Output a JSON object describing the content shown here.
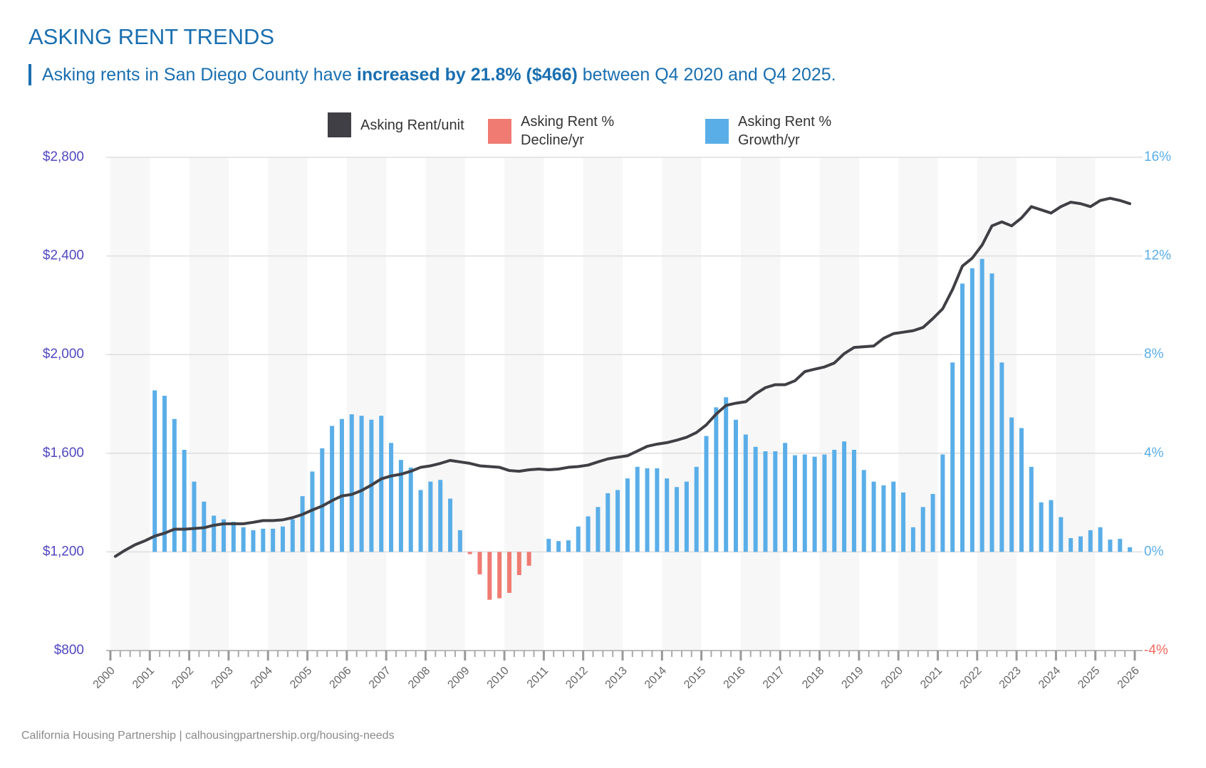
{
  "chart_data": {
    "type": "combo",
    "title": "ASKING RENT TRENDS",
    "subtitle": {
      "before": "Asking rents in San Diego County have ",
      "emphasis": "increased by 21.8% ($466)",
      "after": " between Q4 2020 and Q4 2025."
    },
    "source": "California Housing Partnership | calhousingpartnership.org/housing-needs",
    "x": [
      2000.125,
      2000.375,
      2000.625,
      2000.875,
      2001.125,
      2001.375,
      2001.625,
      2001.875,
      2002.125,
      2002.375,
      2002.625,
      2002.875,
      2003.125,
      2003.375,
      2003.625,
      2003.875,
      2004.125,
      2004.375,
      2004.625,
      2004.875,
      2005.125,
      2005.375,
      2005.625,
      2005.875,
      2006.125,
      2006.375,
      2006.625,
      2006.875,
      2007.125,
      2007.375,
      2007.625,
      2007.875,
      2008.125,
      2008.375,
      2008.625,
      2008.875,
      2009.125,
      2009.375,
      2009.625,
      2009.875,
      2010.125,
      2010.375,
      2010.625,
      2010.875,
      2011.125,
      2011.375,
      2011.625,
      2011.875,
      2012.125,
      2012.375,
      2012.625,
      2012.875,
      2013.125,
      2013.375,
      2013.625,
      2013.875,
      2014.125,
      2014.375,
      2014.625,
      2014.875,
      2015.125,
      2015.375,
      2015.625,
      2015.875,
      2016.125,
      2016.375,
      2016.625,
      2016.875,
      2017.125,
      2017.375,
      2017.625,
      2017.875,
      2018.125,
      2018.375,
      2018.625,
      2018.875,
      2019.125,
      2019.375,
      2019.625,
      2019.875,
      2020.125,
      2020.375,
      2020.625,
      2020.875,
      2021.125,
      2021.375,
      2021.625,
      2021.875,
      2022.125,
      2022.375,
      2022.625,
      2022.875,
      2023.125,
      2023.375,
      2023.625,
      2023.875,
      2024.125,
      2024.375,
      2024.625,
      2024.875,
      2025.125,
      2025.375,
      2025.625,
      2025.875
    ],
    "series": [
      {
        "name": "Asking Rent/unit",
        "type": "line",
        "color": "#3f3f45",
        "values": [
          1182,
          1207,
          1229,
          1245,
          1264,
          1276,
          1292,
          1292,
          1295,
          1298,
          1308,
          1314,
          1314,
          1314,
          1320,
          1327,
          1327,
          1330,
          1339,
          1352,
          1370,
          1386,
          1408,
          1427,
          1433,
          1449,
          1471,
          1496,
          1508,
          1515,
          1527,
          1543,
          1549,
          1559,
          1571,
          1565,
          1559,
          1549,
          1546,
          1543,
          1530,
          1527,
          1533,
          1536,
          1533,
          1536,
          1543,
          1546,
          1552,
          1565,
          1577,
          1584,
          1590,
          1609,
          1628,
          1637,
          1643,
          1653,
          1665,
          1684,
          1715,
          1759,
          1794,
          1803,
          1809,
          1841,
          1866,
          1878,
          1878,
          1894,
          1931,
          1941,
          1950,
          1966,
          2004,
          2029,
          2032,
          2035,
          2066,
          2085,
          2091,
          2097,
          2110,
          2146,
          2186,
          2264,
          2359,
          2391,
          2444,
          2522,
          2538,
          2522,
          2554,
          2600,
          2587,
          2574,
          2600,
          2618,
          2612,
          2600,
          2625,
          2634,
          2625,
          2612
        ]
      },
      {
        "name": "Asking Rent % Decline/yr",
        "type": "bar",
        "axis": "y2",
        "color": "#ef7b72",
        "values": [
          null,
          null,
          null,
          null,
          null,
          null,
          null,
          null,
          null,
          null,
          null,
          null,
          null,
          null,
          null,
          null,
          null,
          null,
          null,
          null,
          null,
          null,
          null,
          null,
          null,
          null,
          null,
          null,
          null,
          null,
          null,
          null,
          null,
          null,
          null,
          null,
          -0.09,
          -0.91,
          -1.94,
          -1.88,
          -1.66,
          -0.94,
          -0.56,
          null,
          null,
          null,
          null,
          null,
          null,
          null,
          null,
          null,
          null,
          null,
          null,
          null,
          null,
          null,
          null,
          null,
          null,
          null,
          null,
          null,
          null,
          null,
          null,
          null,
          null,
          null,
          null,
          null,
          null,
          null,
          null,
          null,
          null,
          null,
          null,
          null,
          null,
          null,
          null,
          null,
          null,
          null,
          null,
          null,
          null,
          null,
          null,
          null,
          null,
          null,
          null,
          null,
          null,
          null,
          null,
          null,
          null,
          null,
          null,
          null
        ]
      },
      {
        "name": "Asking Rent % Growth/yr",
        "type": "bar",
        "axis": "y2",
        "color": "#5aaee8",
        "values": [
          null,
          null,
          null,
          null,
          6.55,
          6.33,
          5.39,
          4.14,
          2.85,
          2.04,
          1.47,
          1.32,
          1.22,
          1.0,
          0.88,
          0.94,
          0.94,
          1.03,
          1.32,
          2.26,
          3.26,
          4.2,
          5.11,
          5.39,
          5.58,
          5.52,
          5.36,
          5.52,
          4.42,
          3.73,
          3.42,
          2.51,
          2.85,
          2.92,
          2.16,
          0.88,
          null,
          null,
          null,
          null,
          null,
          null,
          null,
          0,
          0.53,
          0.44,
          0.47,
          1.03,
          1.44,
          1.82,
          2.38,
          2.51,
          2.98,
          3.45,
          3.39,
          3.39,
          2.98,
          2.63,
          2.85,
          3.45,
          4.7,
          5.86,
          6.27,
          5.36,
          4.76,
          4.26,
          4.08,
          4.08,
          4.42,
          3.92,
          3.95,
          3.86,
          3.95,
          4.14,
          4.48,
          4.14,
          3.32,
          2.85,
          2.7,
          2.85,
          2.41,
          1.0,
          1.82,
          2.35,
          3.95,
          7.68,
          10.88,
          11.5,
          11.88,
          11.29,
          7.68,
          5.45,
          5.02,
          3.45,
          2.01,
          2.1,
          1.41,
          0.56,
          0.63,
          0.88,
          1.0,
          0.5,
          0.53,
          0.19
        ]
      }
    ],
    "xlim": [
      2000,
      2026
    ],
    "xticks": [
      2000,
      2001,
      2002,
      2003,
      2004,
      2005,
      2006,
      2007,
      2008,
      2009,
      2010,
      2011,
      2012,
      2013,
      2014,
      2015,
      2016,
      2017,
      2018,
      2019,
      2020,
      2021,
      2022,
      2023,
      2024,
      2025,
      2026
    ],
    "ylim": [
      800,
      2800
    ],
    "yticks": [
      {
        "value": 800,
        "label": "$800"
      },
      {
        "value": 1200,
        "label": "$1,200"
      },
      {
        "value": 1600,
        "label": "$1,600"
      },
      {
        "value": 2000,
        "label": "$2,000"
      },
      {
        "value": 2400,
        "label": "$2,400"
      },
      {
        "value": 2800,
        "label": "$2,800"
      }
    ],
    "y2lim": [
      -4,
      16
    ],
    "y2ticks": [
      {
        "value": -4,
        "label": "-4%"
      },
      {
        "value": 0,
        "label": "0%"
      },
      {
        "value": 4,
        "label": "4%"
      },
      {
        "value": 8,
        "label": "8%"
      },
      {
        "value": 12,
        "label": "12%"
      },
      {
        "value": 16,
        "label": "16%"
      }
    ],
    "grid": true
  }
}
